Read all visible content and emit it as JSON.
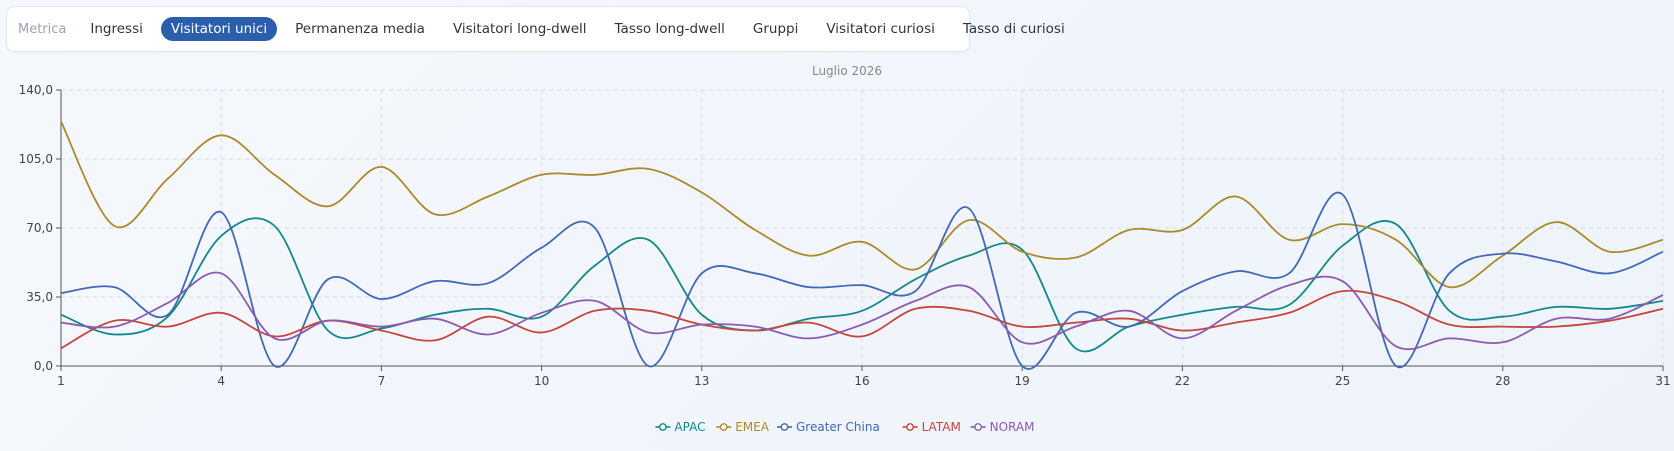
{
  "tabs": {
    "label": "Metrica",
    "items": [
      {
        "label": "Ingressi",
        "active": false
      },
      {
        "label": "Visitatori unici",
        "active": true
      },
      {
        "label": "Permanenza media",
        "active": false
      },
      {
        "label": "Visitatori long-dwell",
        "active": false
      },
      {
        "label": "Tasso long-dwell",
        "active": false
      },
      {
        "label": "Gruppi",
        "active": false
      },
      {
        "label": "Visitatori curiosi",
        "active": false
      },
      {
        "label": "Tasso di curiosi",
        "active": false
      }
    ]
  },
  "chart_data": {
    "type": "line",
    "title": "Luglio 2026",
    "xlabel": "",
    "ylabel": "",
    "xlim": [
      1,
      31
    ],
    "ylim": [
      0,
      140
    ],
    "x_ticks": [
      1,
      4,
      7,
      10,
      13,
      16,
      19,
      22,
      25,
      28,
      31
    ],
    "y_ticks": [
      {
        "value": 0,
        "label": "0,0"
      },
      {
        "value": 35,
        "label": "35,0"
      },
      {
        "value": 70,
        "label": "70,0"
      },
      {
        "value": 105,
        "label": "105,0"
      },
      {
        "value": 140,
        "label": "140,0"
      }
    ],
    "grid": true,
    "legend_position": "bottom-center",
    "x": [
      1,
      2,
      3,
      4,
      5,
      6,
      7,
      8,
      9,
      10,
      11,
      12,
      13,
      14,
      15,
      16,
      17,
      18,
      19,
      20,
      21,
      22,
      23,
      24,
      25,
      26,
      27,
      28,
      29,
      30,
      31
    ],
    "series": [
      {
        "name": "APAC",
        "color": "#11898b",
        "values": [
          26,
          16,
          25,
          66,
          71,
          18,
          19,
          26,
          29,
          25,
          51,
          64,
          26,
          18,
          24,
          28,
          44,
          56,
          59,
          9,
          20,
          26,
          30,
          31,
          61,
          72,
          28,
          25,
          30,
          29,
          33
        ]
      },
      {
        "name": "EMEA",
        "color": "#a98a2c",
        "values": [
          124,
          71,
          95,
          117,
          97,
          81,
          101,
          77,
          86,
          97,
          97,
          100,
          88,
          69,
          56,
          63,
          49,
          74,
          58,
          55,
          69,
          69,
          86,
          64,
          72,
          64,
          40,
          56,
          73,
          58,
          64
        ]
      },
      {
        "name": "Greater China",
        "color": "#4169b8",
        "values": [
          37,
          40,
          26,
          78,
          0,
          44,
          34,
          43,
          42,
          60,
          70,
          0,
          47,
          47,
          40,
          41,
          38,
          80,
          0,
          27,
          20,
          38,
          48,
          47,
          87,
          0,
          47,
          57,
          53,
          47,
          58
        ]
      },
      {
        "name": "LATAM",
        "color": "#c4463f",
        "values": [
          9,
          23,
          20,
          27,
          15,
          23,
          18,
          13,
          25,
          17,
          28,
          28,
          21,
          18,
          22,
          15,
          29,
          28,
          20,
          22,
          24,
          18,
          22,
          27,
          38,
          33,
          21,
          20,
          20,
          23,
          29
        ]
      },
      {
        "name": "NORAM",
        "color": "#8c5bb0",
        "values": [
          22,
          20,
          32,
          47,
          14,
          23,
          20,
          24,
          16,
          27,
          33,
          17,
          21,
          20,
          14,
          21,
          33,
          40,
          12,
          20,
          28,
          14,
          28,
          41,
          43,
          10,
          14,
          12,
          24,
          24,
          36
        ]
      }
    ]
  }
}
